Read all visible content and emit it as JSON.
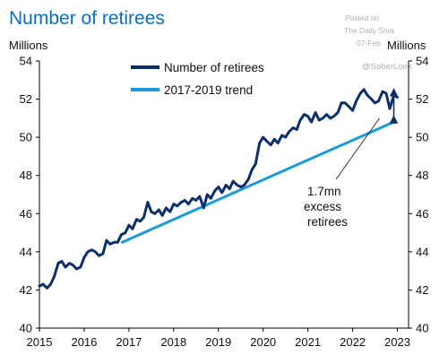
{
  "watermark": {
    "line1": "Posted on",
    "line2": "The Daily Shot",
    "line3": "07-Feb",
    "handle": "@SoberLook"
  },
  "chart_data": {
    "type": "line",
    "title": "Number of retirees",
    "ylabel_left": "Millions",
    "ylabel_right": "Millions",
    "xlim": [
      2015,
      2023.25
    ],
    "ylim": [
      40,
      54
    ],
    "x_ticks": [
      "2015",
      "2016",
      "2017",
      "2018",
      "2019",
      "2020",
      "2021",
      "2022",
      "2023"
    ],
    "y_ticks": [
      "40",
      "42",
      "44",
      "46",
      "48",
      "50",
      "52",
      "54"
    ],
    "legend_position": "top-center",
    "grid": false,
    "series": [
      {
        "name": "Number of retirees",
        "color": "#0b2f6b",
        "x": [
          2015.0,
          2015.08,
          2015.17,
          2015.25,
          2015.33,
          2015.42,
          2015.5,
          2015.58,
          2015.67,
          2015.75,
          2015.83,
          2015.92,
          2016.0,
          2016.08,
          2016.17,
          2016.25,
          2016.33,
          2016.42,
          2016.5,
          2016.58,
          2016.67,
          2016.75,
          2016.83,
          2016.92,
          2017.0,
          2017.08,
          2017.17,
          2017.25,
          2017.33,
          2017.42,
          2017.5,
          2017.58,
          2017.67,
          2017.75,
          2017.83,
          2017.92,
          2018.0,
          2018.08,
          2018.17,
          2018.25,
          2018.33,
          2018.42,
          2018.5,
          2018.58,
          2018.67,
          2018.75,
          2018.83,
          2018.92,
          2019.0,
          2019.08,
          2019.17,
          2019.25,
          2019.33,
          2019.42,
          2019.5,
          2019.58,
          2019.67,
          2019.75,
          2019.83,
          2019.92,
          2020.0,
          2020.08,
          2020.17,
          2020.25,
          2020.33,
          2020.42,
          2020.5,
          2020.58,
          2020.67,
          2020.75,
          2020.83,
          2020.92,
          2021.0,
          2021.08,
          2021.17,
          2021.25,
          2021.33,
          2021.42,
          2021.5,
          2021.58,
          2021.67,
          2021.75,
          2021.83,
          2021.92,
          2022.0,
          2022.08,
          2022.17,
          2022.25,
          2022.33,
          2022.42,
          2022.5,
          2022.58,
          2022.67,
          2022.75,
          2022.83,
          2022.92,
          2023.0
        ],
        "values": [
          42.2,
          42.3,
          42.1,
          42.3,
          42.7,
          43.4,
          43.5,
          43.2,
          43.4,
          43.3,
          43.1,
          43.2,
          43.7,
          44.0,
          44.1,
          44.0,
          43.8,
          43.9,
          44.6,
          44.4,
          44.5,
          44.5,
          44.9,
          45.0,
          45.4,
          45.2,
          45.7,
          45.6,
          45.8,
          46.6,
          46.1,
          46.0,
          46.2,
          45.9,
          46.3,
          46.1,
          46.5,
          46.4,
          46.6,
          46.7,
          46.5,
          46.8,
          46.7,
          46.9,
          46.3,
          47.0,
          46.8,
          47.2,
          47.4,
          47.1,
          47.5,
          47.3,
          47.7,
          47.5,
          47.4,
          47.5,
          47.8,
          48.3,
          48.6,
          49.7,
          50.0,
          49.8,
          49.6,
          49.9,
          49.7,
          50.1,
          50.0,
          50.3,
          50.5,
          50.4,
          50.9,
          51.2,
          51.1,
          50.8,
          51.3,
          50.9,
          51.0,
          51.2,
          51.0,
          51.1,
          51.3,
          51.8,
          51.8,
          51.6,
          51.4,
          51.9,
          52.3,
          52.5,
          52.2,
          52.0,
          51.8,
          51.9,
          52.4,
          52.3,
          51.5,
          52.2,
          52.1
        ],
        "x_note": "values sampled monthly; series ends at 2023"
      },
      {
        "name": "2017-2019 trend",
        "color": "#1a9ad6",
        "x": [
          2016.85,
          2022.92
        ],
        "values": [
          44.5,
          50.8
        ]
      }
    ],
    "annotations": [
      {
        "text_lines": [
          "1.7mn",
          "excess",
          "retirees"
        ],
        "points_to": {
          "x": 2022.6,
          "y": 51.0
        }
      }
    ],
    "bracket": {
      "x": 2022.92,
      "y_from": 50.8,
      "y_to": 52.5
    }
  }
}
